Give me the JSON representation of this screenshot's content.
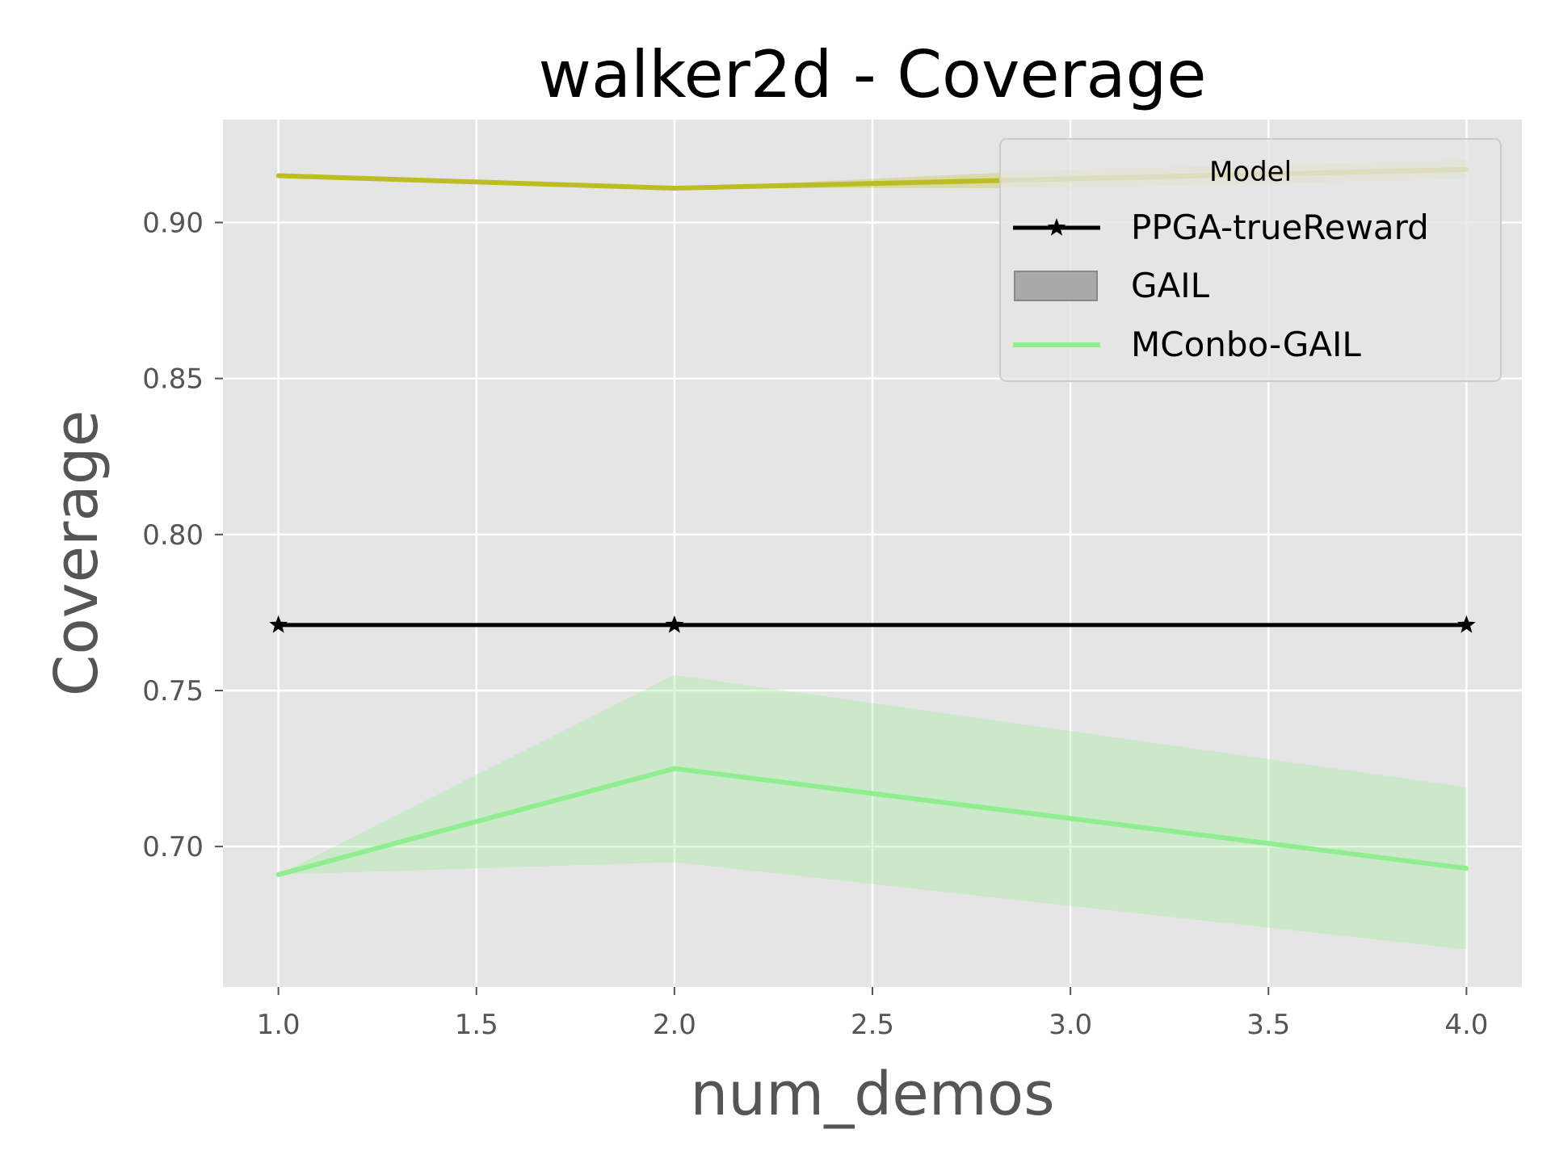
{
  "chart_data": {
    "type": "line",
    "title": "walker2d - Coverage",
    "xlabel": "num_demos",
    "ylabel": "Coverage",
    "xlim": [
      0.86,
      4.14
    ],
    "ylim": [
      0.655,
      0.933
    ],
    "xticks": [
      1.0,
      1.5,
      2.0,
      2.5,
      3.0,
      3.5,
      4.0
    ],
    "xtick_labels": [
      "1.0",
      "1.5",
      "2.0",
      "2.5",
      "3.0",
      "3.5",
      "4.0"
    ],
    "yticks": [
      0.7,
      0.75,
      0.8,
      0.85,
      0.9
    ],
    "ytick_labels": [
      "0.70",
      "0.75",
      "0.80",
      "0.85",
      "0.90"
    ],
    "grid": true,
    "legend": {
      "title": "Model",
      "position": "top-right",
      "entries": [
        "PPGA-trueReward",
        "GAIL",
        "MConbo-GAIL"
      ]
    },
    "series": [
      {
        "name": "PPGA-trueReward",
        "color": "#000000",
        "marker": "star",
        "x": [
          1,
          2,
          4
        ],
        "y": [
          0.771,
          0.771,
          0.771
        ]
      },
      {
        "name": "",
        "color": "#bcbd22",
        "x": [
          1,
          2,
          3,
          4
        ],
        "y": [
          0.915,
          0.911,
          0.914,
          0.917
        ],
        "ci_lower": [
          0.915,
          0.911,
          0.911,
          0.914
        ],
        "ci_upper": [
          0.915,
          0.911,
          0.917,
          0.92
        ]
      },
      {
        "name": "MConbo-GAIL",
        "color": "#90ee90",
        "x": [
          1,
          2,
          4
        ],
        "y": [
          0.691,
          0.725,
          0.693
        ],
        "ci_lower": [
          0.691,
          0.695,
          0.667
        ],
        "ci_upper": [
          0.691,
          0.755,
          0.719
        ]
      }
    ],
    "gail_legend_color": "#a9a9a9"
  }
}
